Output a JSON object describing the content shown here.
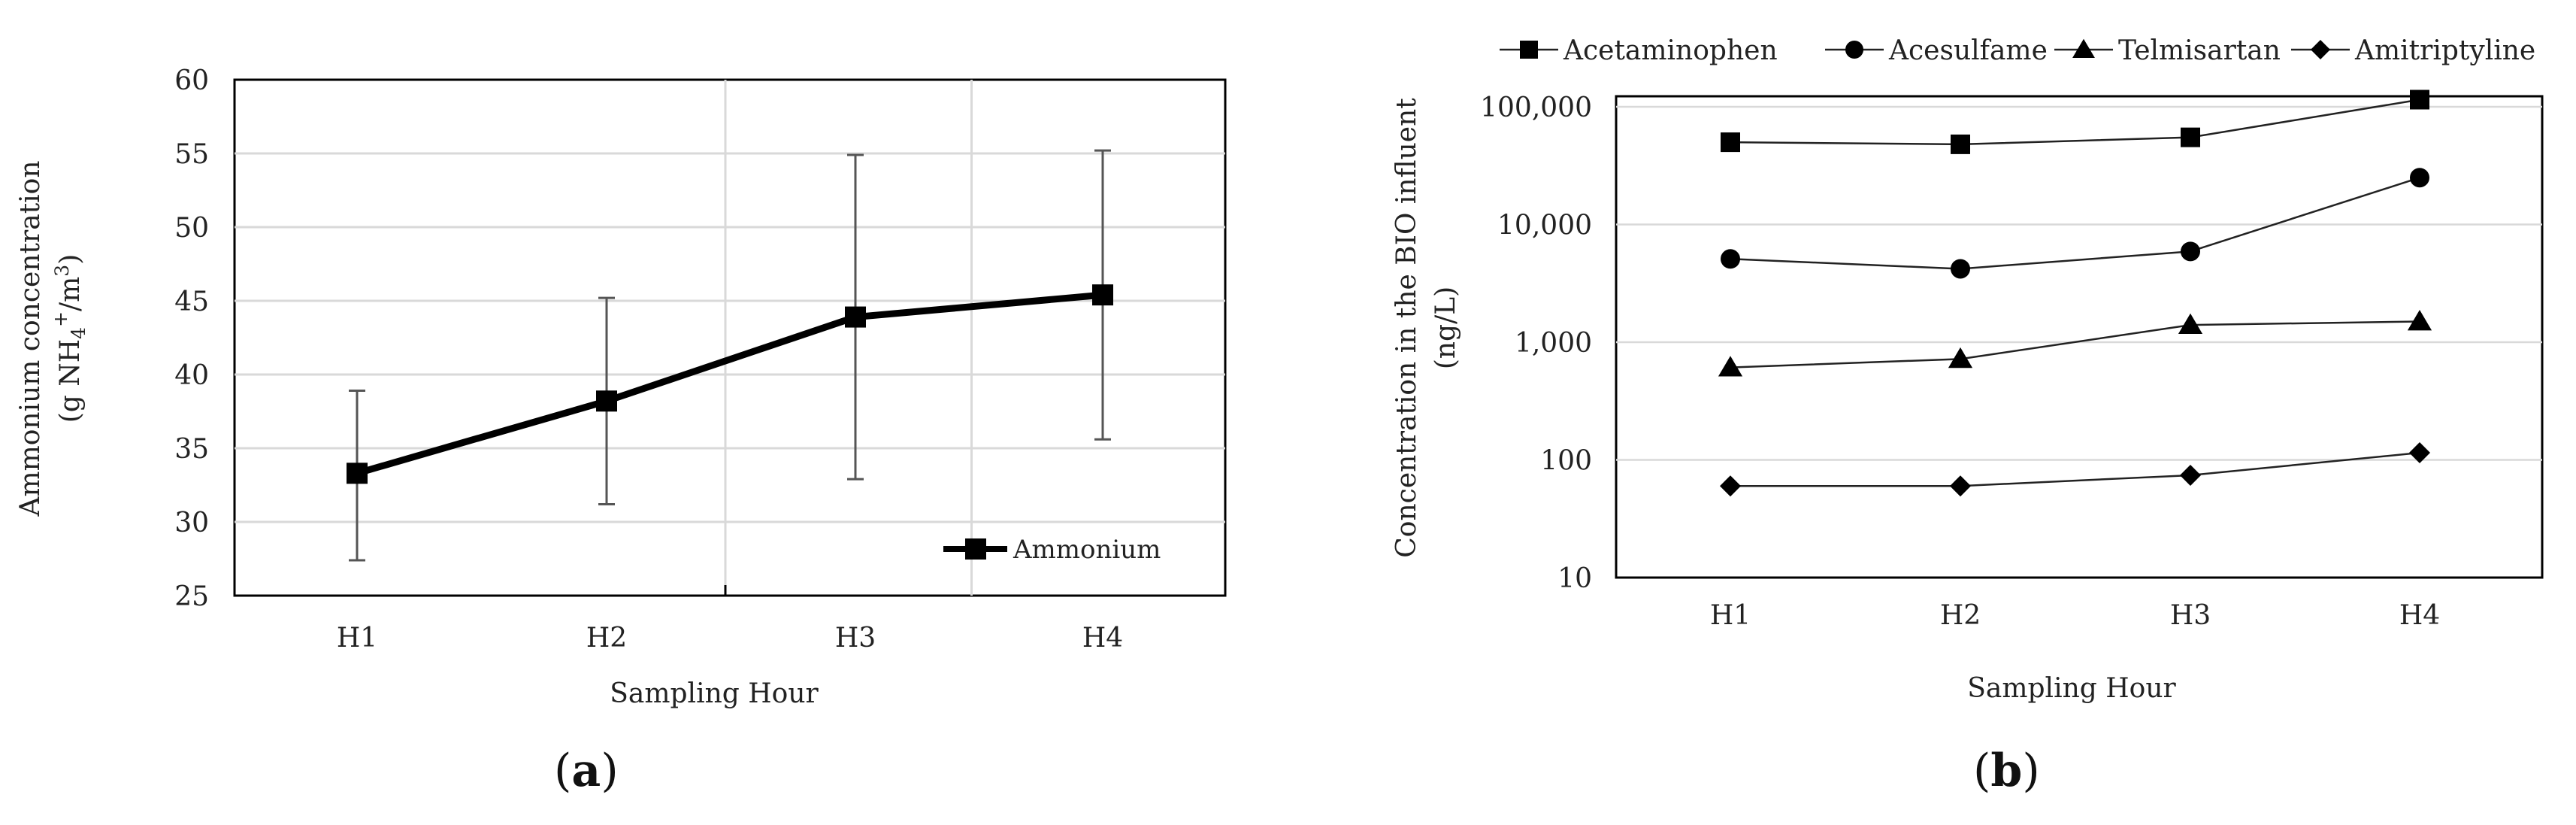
{
  "chart_data": [
    {
      "panel": "a",
      "type": "line",
      "categories": [
        "H1",
        "H2",
        "H3",
        "H4"
      ],
      "series": [
        {
          "name": "Ammonium",
          "values": [
            33.3,
            38.2,
            43.9,
            45.4
          ],
          "error_low": [
            27.4,
            31.2,
            32.9,
            35.6
          ],
          "error_high": [
            38.9,
            45.2,
            54.9,
            55.2
          ]
        }
      ],
      "xlabel": "Sampling Hour",
      "ylabel_line1": "Ammonium concentration",
      "ylabel_line2": "(g NH4+/m3)",
      "ylim": [
        25,
        60
      ],
      "yticks": [
        25,
        30,
        35,
        40,
        45,
        50,
        55,
        60
      ],
      "ytick_labels": [
        "25",
        "30",
        "35",
        "40",
        "45",
        "50",
        "55",
        "60"
      ],
      "grid": true,
      "legend_position": "bottom-right"
    },
    {
      "panel": "b",
      "type": "line",
      "categories": [
        "H1",
        "H2",
        "H3",
        "H4"
      ],
      "series": [
        {
          "name": "Acetaminophen",
          "marker": "square",
          "values": [
            50000,
            48000,
            55000,
            115000
          ]
        },
        {
          "name": "Acesulfame",
          "marker": "circle",
          "values": [
            5100,
            4200,
            5900,
            25000
          ]
        },
        {
          "name": "Telmisartan",
          "marker": "triangle",
          "values": [
            610,
            720,
            1400,
            1500
          ]
        },
        {
          "name": "Amitriptyline",
          "marker": "diamond",
          "values": [
            60,
            60,
            74,
            115
          ]
        }
      ],
      "xlabel": "Sampling Hour",
      "ylabel_line1": "Concentration in the BIO influent",
      "ylabel_line2": "(ng/L)",
      "yscale": "log",
      "ylim": [
        10,
        100000
      ],
      "yticks": [
        10,
        100,
        1000,
        10000,
        100000
      ],
      "ytick_labels": [
        "10",
        "100",
        "1,000",
        "10,000",
        "100,000"
      ],
      "grid": true,
      "legend_position": "top"
    }
  ],
  "panel_labels": [
    "a",
    "b"
  ]
}
